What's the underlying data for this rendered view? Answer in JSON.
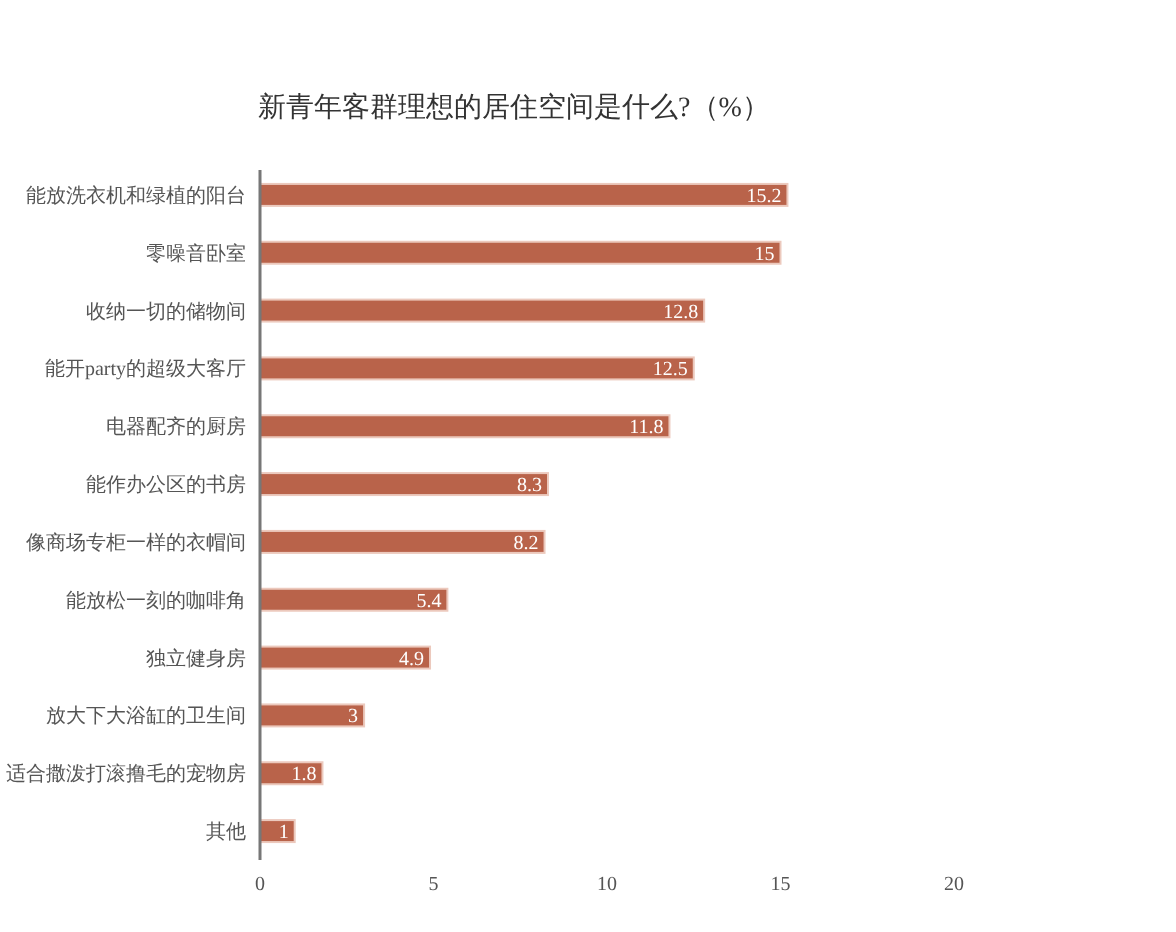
{
  "chart_data": {
    "type": "bar",
    "orientation": "horizontal",
    "title": "新青年客群理想的居住空间是什么?（%）",
    "categories": [
      "能放洗衣机和绿植的阳台",
      "零噪音卧室",
      "收纳一切的储物间",
      "能开party的超级大客厅",
      "电器配齐的厨房",
      "能作办公区的书房",
      "像商场专柜一样的衣帽间",
      "能放松一刻的咖啡角",
      "独立健身房",
      "放大下大浴缸的卫生间",
      "适合撒泼打滚撸毛的宠物房",
      "其他"
    ],
    "values": [
      15.2,
      15,
      12.8,
      12.5,
      11.8,
      8.3,
      8.2,
      5.4,
      4.9,
      3,
      1.8,
      1
    ],
    "color": "#b9634a",
    "xlim": [
      0,
      20
    ],
    "xticks": [
      0,
      5,
      10,
      15,
      20
    ],
    "data_labels": true
  }
}
